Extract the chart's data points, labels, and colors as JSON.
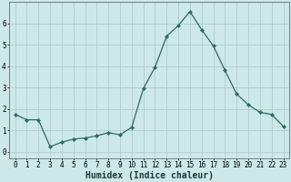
{
  "x": [
    0,
    1,
    2,
    3,
    4,
    5,
    6,
    7,
    8,
    9,
    10,
    11,
    12,
    13,
    14,
    15,
    16,
    17,
    18,
    19,
    20,
    21,
    22,
    23
  ],
  "y": [
    1.75,
    1.5,
    1.5,
    0.25,
    0.45,
    0.6,
    0.65,
    0.75,
    0.9,
    0.8,
    1.15,
    2.95,
    3.95,
    5.4,
    5.9,
    6.55,
    5.7,
    4.95,
    3.8,
    2.7,
    2.2,
    1.85,
    1.75,
    1.2
  ],
  "line_color": "#2e6b5e",
  "marker": "D",
  "marker_size": 2.0,
  "bg_color": "#cce8e8",
  "grid_color": "#b0cccc",
  "xlabel": "Humidex (Indice chaleur)",
  "xlim": [
    -0.5,
    23.5
  ],
  "ylim": [
    -0.3,
    7.0
  ],
  "yticks": [
    0,
    1,
    2,
    3,
    4,
    5,
    6
  ],
  "xticks": [
    0,
    1,
    2,
    3,
    4,
    5,
    6,
    7,
    8,
    9,
    10,
    11,
    12,
    13,
    14,
    15,
    16,
    17,
    18,
    19,
    20,
    21,
    22,
    23
  ],
  "tick_fontsize": 5.5,
  "xlabel_fontsize": 7.0,
  "xlabel_bold": true,
  "spine_color": "#555555"
}
